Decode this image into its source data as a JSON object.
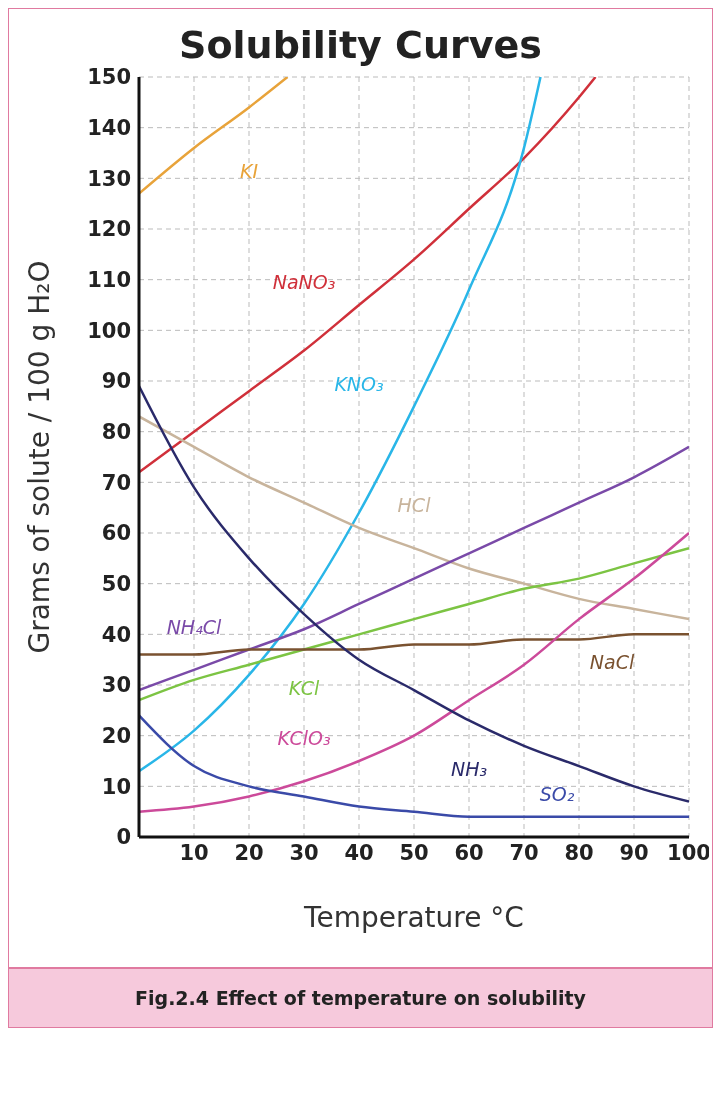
{
  "chart_data": {
    "type": "line",
    "title": "Solubility Curves",
    "xlabel": "Temperature °C",
    "ylabel": "Grams of solute / 100 g H₂O",
    "annotations": [
      "Fig.2.4 Effect of temperature on solubility"
    ],
    "xlim": [
      0,
      100
    ],
    "xticks": [
      10,
      20,
      30,
      40,
      50,
      60,
      70,
      80,
      90,
      100
    ],
    "ylim": [
      0,
      150
    ],
    "yticks": [
      0,
      10,
      20,
      30,
      40,
      50,
      60,
      70,
      80,
      90,
      100,
      110,
      120,
      130,
      140,
      150
    ],
    "grid": true,
    "legend": false,
    "marker": "none",
    "line_style": "solid",
    "series": [
      {
        "name": "KI",
        "color": "#e8a33a",
        "x": [
          0,
          10,
          20,
          27
        ],
        "values": [
          127,
          136,
          144,
          150
        ]
      },
      {
        "name": "NaNO₃",
        "color": "#d0303a",
        "x": [
          0,
          10,
          20,
          30,
          40,
          50,
          60,
          70,
          80,
          83
        ],
        "values": [
          72,
          80,
          88,
          96,
          105,
          114,
          124,
          134,
          146,
          150
        ]
      },
      {
        "name": "KNO₃",
        "color": "#29b6e8",
        "x": [
          0,
          10,
          20,
          30,
          40,
          50,
          60,
          70,
          73
        ],
        "values": [
          13,
          21,
          32,
          46,
          64,
          85,
          108,
          136,
          150
        ]
      },
      {
        "name": "HCl",
        "color": "#c8b49c",
        "x": [
          0,
          10,
          20,
          30,
          40,
          50,
          60,
          70,
          80,
          90,
          100
        ],
        "values": [
          83,
          77,
          71,
          66,
          61,
          57,
          53,
          50,
          47,
          45,
          43
        ]
      },
      {
        "name": "NH₄Cl",
        "color": "#7a4aa8",
        "x": [
          0,
          10,
          20,
          30,
          40,
          50,
          60,
          70,
          80,
          90,
          100
        ],
        "values": [
          29,
          33,
          37,
          41,
          46,
          51,
          56,
          61,
          66,
          71,
          77
        ]
      },
      {
        "name": "KCl",
        "color": "#7cc443",
        "x": [
          0,
          10,
          20,
          30,
          40,
          50,
          60,
          70,
          80,
          90,
          100
        ],
        "values": [
          27,
          31,
          34,
          37,
          40,
          43,
          46,
          49,
          51,
          54,
          57
        ]
      },
      {
        "name": "NaCl",
        "color": "#7a5230",
        "x": [
          0,
          10,
          20,
          30,
          40,
          50,
          60,
          70,
          80,
          90,
          100
        ],
        "values": [
          36,
          36,
          37,
          37,
          37,
          38,
          38,
          39,
          39,
          40,
          40
        ]
      },
      {
        "name": "KClO₃",
        "color": "#cc4a9a",
        "x": [
          0,
          10,
          20,
          30,
          40,
          50,
          60,
          70,
          80,
          90,
          100
        ],
        "values": [
          5,
          6,
          8,
          11,
          15,
          20,
          27,
          34,
          43,
          51,
          60
        ]
      },
      {
        "name": "NH₃",
        "color": "#2a2a6a",
        "x": [
          0,
          10,
          20,
          30,
          40,
          50,
          60,
          70,
          80,
          90,
          100
        ],
        "values": [
          89,
          69,
          55,
          44,
          35,
          29,
          23,
          18,
          14,
          10,
          7
        ]
      },
      {
        "name": "SO₂",
        "color": "#3a4aa8",
        "x": [
          0,
          10,
          20,
          30,
          40,
          50,
          60,
          70,
          80,
          90,
          100
        ],
        "values": [
          24,
          14,
          10,
          8,
          6,
          5,
          4,
          4,
          4,
          4,
          4
        ]
      }
    ]
  }
}
